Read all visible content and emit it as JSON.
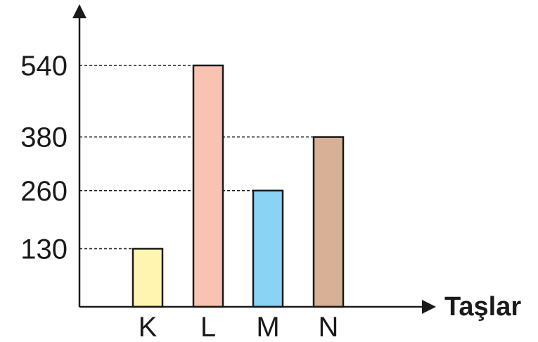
{
  "chart_data": {
    "type": "bar",
    "title": "",
    "xlabel": "Taşlar",
    "ylabel": "",
    "categories": [
      "K",
      "L",
      "M",
      "N"
    ],
    "values": [
      130,
      540,
      260,
      380
    ],
    "yticks": [
      "130",
      "260",
      "380",
      "540"
    ],
    "grid": false,
    "reference_lines": "dashed",
    "colors": [
      "#fff5b0",
      "#f9c3b1",
      "#8bd3f5",
      "#d8b095"
    ]
  }
}
